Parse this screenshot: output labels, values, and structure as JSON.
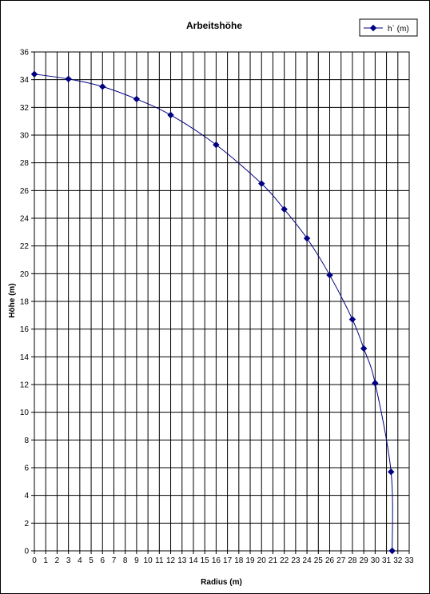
{
  "chart_data": {
    "type": "line",
    "title": "Arbeitshöhe",
    "xlabel": "Radius (m)",
    "ylabel": "Höhe (m)",
    "xlim": [
      0,
      33
    ],
    "ylim": [
      0,
      36
    ],
    "x_ticks": [
      "0",
      "1",
      "2",
      "3",
      "4",
      "5",
      "6",
      "7",
      "8",
      "9",
      "10",
      "11",
      "12",
      "13",
      "14",
      "15",
      "16",
      "17",
      "18",
      "19",
      "20",
      "21",
      "22",
      "23",
      "24",
      "25",
      "26",
      "27",
      "28",
      "29",
      "30",
      "31",
      "32",
      "33"
    ],
    "y_ticks": [
      "0",
      "2",
      "4",
      "6",
      "8",
      "10",
      "12",
      "14",
      "16",
      "18",
      "20",
      "22",
      "24",
      "26",
      "28",
      "30",
      "32",
      "34",
      "36"
    ],
    "grid": true,
    "legend_position": "top-right",
    "series": [
      {
        "name": "h` (m)",
        "color": "#000080",
        "marker": "diamond",
        "points": [
          {
            "x": 0,
            "y": 34.4
          },
          {
            "x": 3,
            "y": 34.05
          },
          {
            "x": 6,
            "y": 33.5
          },
          {
            "x": 9,
            "y": 32.6
          },
          {
            "x": 12,
            "y": 31.45
          },
          {
            "x": 16,
            "y": 29.3
          },
          {
            "x": 20,
            "y": 26.5
          },
          {
            "x": 22,
            "y": 24.65
          },
          {
            "x": 24,
            "y": 22.55
          },
          {
            "x": 26,
            "y": 19.9
          },
          {
            "x": 28,
            "y": 16.7
          },
          {
            "x": 29,
            "y": 14.6
          },
          {
            "x": 30,
            "y": 12.1
          },
          {
            "x": 31.4,
            "y": 5.7
          },
          {
            "x": 31.5,
            "y": 0
          }
        ]
      }
    ]
  }
}
